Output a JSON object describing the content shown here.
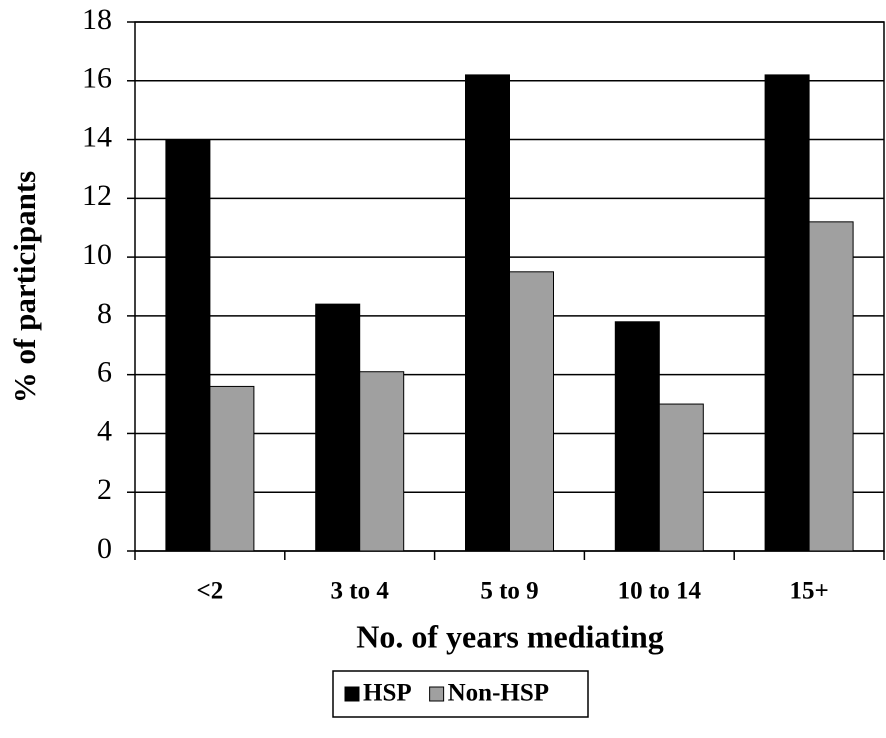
{
  "chart_data": {
    "type": "bar",
    "y_label": "% of participants",
    "x_label": "No. of years mediating",
    "categories": [
      "<2",
      "3 to 4",
      "5 to 9",
      "10 to 14",
      "15+"
    ],
    "series": [
      {
        "name": "HSP",
        "color": "#000000",
        "values": [
          14.0,
          8.4,
          16.2,
          7.8,
          16.2
        ]
      },
      {
        "name": "Non-HSP",
        "color": "#a0a0a0",
        "values": [
          5.6,
          6.1,
          9.5,
          5.0,
          11.2
        ]
      }
    ],
    "ylim": [
      0,
      18
    ],
    "yticks": [
      0,
      2,
      4,
      6,
      8,
      10,
      12,
      14,
      16,
      18
    ],
    "grid": true,
    "legend": "bottom"
  }
}
